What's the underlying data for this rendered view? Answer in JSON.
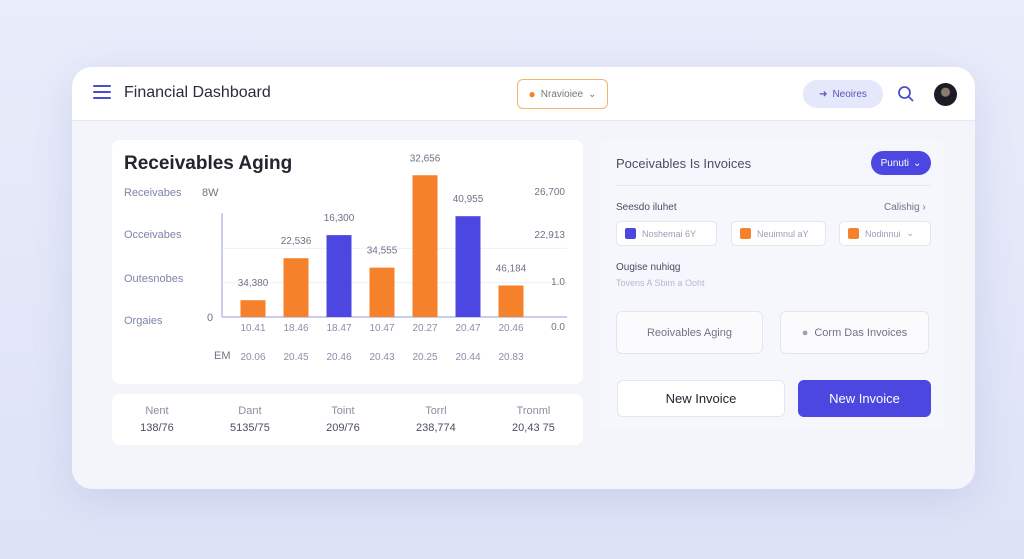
{
  "header": {
    "title": "Financial Dashboard",
    "selector": "Nravioiee",
    "pill": "Neoires"
  },
  "chart_panel": {
    "title": "Receivables Aging",
    "left_labels": [
      "Receivabes",
      "Occeivabes",
      "Outesnobes",
      "Orgaies"
    ],
    "unit_label": "8W",
    "zero_label": "0",
    "bottom_left_label": "EM"
  },
  "chart_data": {
    "type": "bar",
    "title": "Receivables Aging",
    "ylim": [
      0,
      140
    ],
    "categories": [
      "10.41",
      "18.46",
      "18.47",
      "10.47",
      "20.27",
      "20.47",
      "20.46"
    ],
    "second_row_labels": [
      "20.06",
      "20.45",
      "20.46",
      "20.43",
      "20.25",
      "20.44",
      "20.83"
    ],
    "values": [
      16,
      56,
      78,
      47,
      135,
      96,
      30
    ],
    "data_labels": [
      "34,380",
      "22,536",
      "16,300",
      "34,555",
      "32,656",
      "40,955",
      "46,184"
    ],
    "series_colors": [
      "#F5822A",
      "#F5822A",
      "#4B47E0",
      "#F5822A",
      "#F5822A",
      "#4B47E0",
      "#F5822A"
    ],
    "right_axis": [
      "26,700",
      "22,913",
      "1.0",
      "0.0"
    ]
  },
  "stats": [
    {
      "h": "Nent",
      "v": "138/76"
    },
    {
      "h": "Dant",
      "v": "5135/75"
    },
    {
      "h": "Toint",
      "v": "209/76"
    },
    {
      "h": "Torrl",
      "v": "238,774"
    },
    {
      "h": "Tronml",
      "v": "20,43 75"
    }
  ],
  "right": {
    "title": "Poceivables Is Invoices",
    "button": "Punuti",
    "section1": "Seesdo iluhet",
    "section1_link": "Calishig",
    "chips": [
      "Noshemai 6Y",
      "Neuimnul aY",
      "Nodinnui"
    ],
    "section2": "Ougise nuhiqg",
    "section2_sub": "Tovens A Sbim a Ooht",
    "box1": "Reoivables Aging",
    "box2": "Corm Das Invoices",
    "btn1": "New Invoice",
    "btn2": "New Invoice"
  },
  "colors": {
    "orange": "#F5822A",
    "blue": "#4B47E0"
  }
}
